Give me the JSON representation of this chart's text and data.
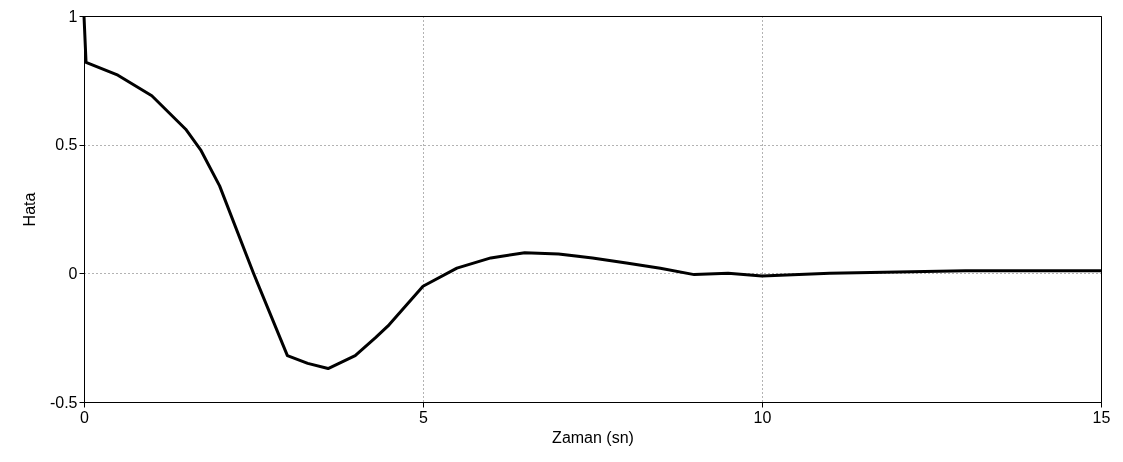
{
  "chart_data": {
    "type": "line",
    "xlabel": "Zaman (sn)",
    "ylabel": "Hata",
    "x": [
      0,
      0.03,
      0.5,
      1,
      1.5,
      1.72,
      2,
      2.5,
      3,
      3.3,
      3.6,
      4,
      4.3,
      4.5,
      5,
      5.5,
      6,
      6.5,
      7,
      7.5,
      8,
      8.5,
      9,
      9.5,
      10,
      11,
      12,
      13,
      14,
      15
    ],
    "series": [
      {
        "color": "#000000",
        "values": [
          1,
          0.82,
          0.77,
          0.69,
          0.56,
          0.48,
          0.34,
          0.0,
          -0.32,
          -0.35,
          -0.37,
          -0.32,
          -0.25,
          -0.2,
          -0.05,
          0.02,
          0.06,
          0.08,
          0.075,
          0.06,
          0.04,
          0.02,
          -0.005,
          0,
          -0.01,
          0,
          0.005,
          0.01,
          0.01,
          0.01
        ]
      }
    ],
    "xlim": [
      0,
      15
    ],
    "xticks": [
      0,
      5,
      10,
      15
    ],
    "ylim": [
      -0.5,
      1
    ],
    "yticks": [
      -0.5,
      0,
      0.5,
      1
    ],
    "grid": true,
    "line_style": "solid",
    "marker": "none"
  }
}
